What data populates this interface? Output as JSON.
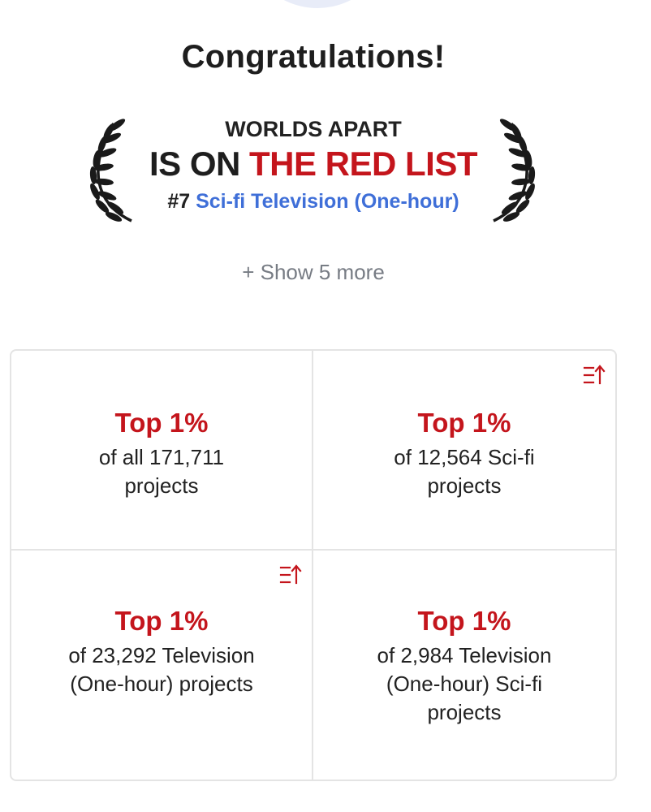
{
  "heading": "Congratulations!",
  "award": {
    "title": "WORLDS APART",
    "prefix": "IS ON ",
    "list_name": "THE RED LIST",
    "rank": "#7",
    "category": "Sci-fi Television (One-hour)"
  },
  "show_more": "+ Show 5 more",
  "colors": {
    "accent_red": "#c4151c",
    "link_blue": "#3f6fd8"
  },
  "stats": [
    {
      "top": "Top 1%",
      "description": "of all 171,711 projects",
      "has_sort_icon": false
    },
    {
      "top": "Top 1%",
      "description": "of 12,564 Sci-fi projects",
      "has_sort_icon": true,
      "icon": "sort-ascending-icon"
    },
    {
      "top": "Top 1%",
      "description": "of 23,292 Television (One-hour) projects",
      "has_sort_icon": true,
      "icon": "sort-ascending-icon"
    },
    {
      "top": "Top 1%",
      "description": "of 2,984 Television (One-hour) Sci-fi projects",
      "has_sort_icon": false
    }
  ]
}
